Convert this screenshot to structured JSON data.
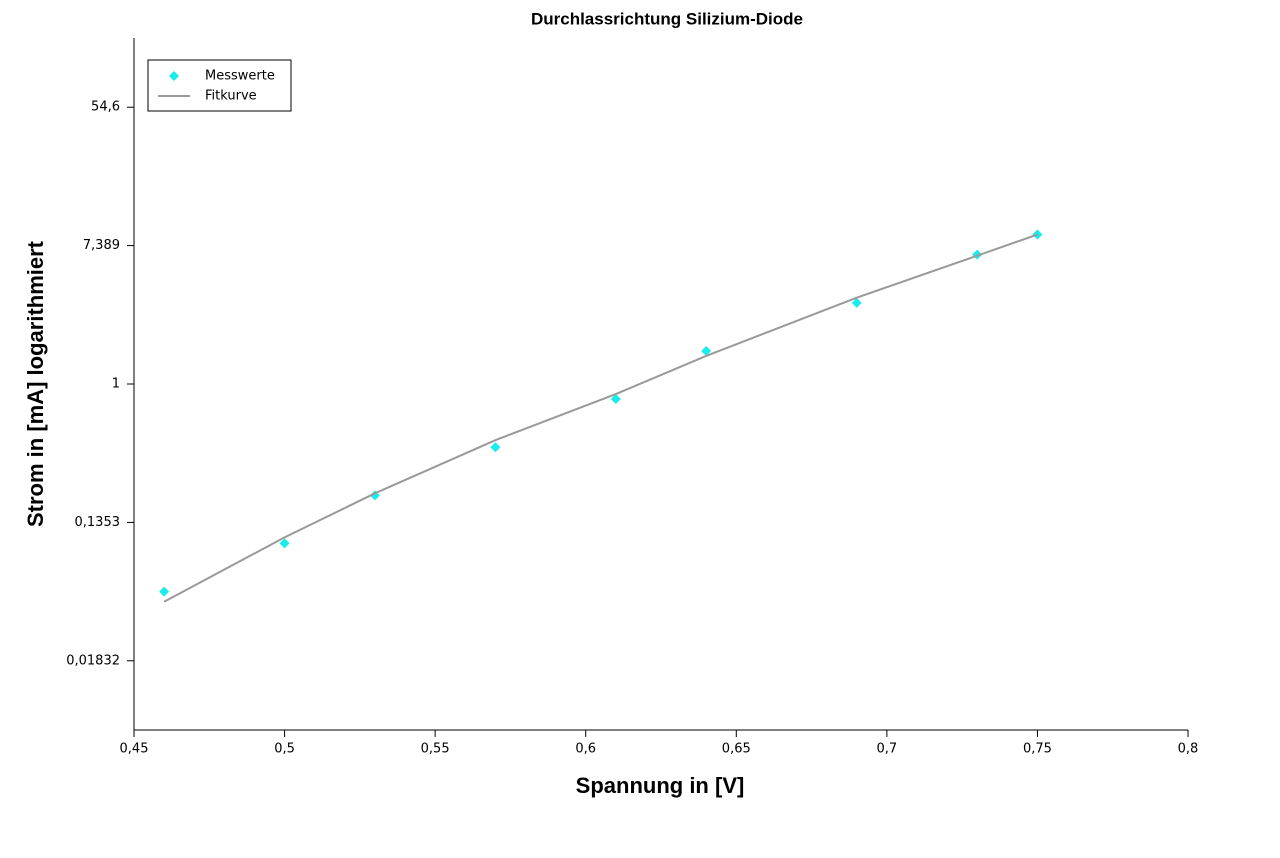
{
  "chart_data": {
    "type": "scatter",
    "title": "Durchlassrichtung Silizium-Diode",
    "xlabel": "Spannung in [V]",
    "ylabel": "Strom in [mA] logarithmiert",
    "xlim": [
      0.45,
      0.8
    ],
    "xticks": [
      {
        "value": 0.45,
        "label": "0,45"
      },
      {
        "value": 0.5,
        "label": "0,5"
      },
      {
        "value": 0.55,
        "label": "0,55"
      },
      {
        "value": 0.6,
        "label": "0,6"
      },
      {
        "value": 0.65,
        "label": "0,65"
      },
      {
        "value": 0.7,
        "label": "0,7"
      },
      {
        "value": 0.75,
        "label": "0,75"
      },
      {
        "value": 0.8,
        "label": "0,8"
      }
    ],
    "ylim": [
      0.006738,
      148.4
    ],
    "ylog": true,
    "yticks": [
      {
        "value": 0.01832,
        "label": "0,01832"
      },
      {
        "value": 0.1353,
        "label": "0,1353"
      },
      1,
      {
        "value": 7.389,
        "label": "7,389"
      },
      {
        "value": 54.6,
        "label": "54,6"
      }
    ],
    "legend": "upper left",
    "series": [
      {
        "name": "Messwerte",
        "mode": "markers",
        "color": "#19ecec",
        "x": [
          0.46,
          0.5,
          0.53,
          0.57,
          0.61,
          0.64,
          0.69,
          0.73,
          0.75
        ],
        "values": [
          0.0498,
          0.1,
          0.2,
          0.401,
          0.805,
          1.61,
          3.23,
          6.48,
          8.67
        ]
      },
      {
        "name": "Fitkurve",
        "mode": "line",
        "color": "#999999",
        "x": [
          0.46,
          0.5,
          0.53,
          0.57,
          0.61,
          0.64,
          0.69,
          0.73,
          0.75
        ],
        "values": [
          0.043,
          0.109,
          0.206,
          0.444,
          0.865,
          1.5,
          3.48,
          6.39,
          8.67
        ]
      }
    ]
  }
}
